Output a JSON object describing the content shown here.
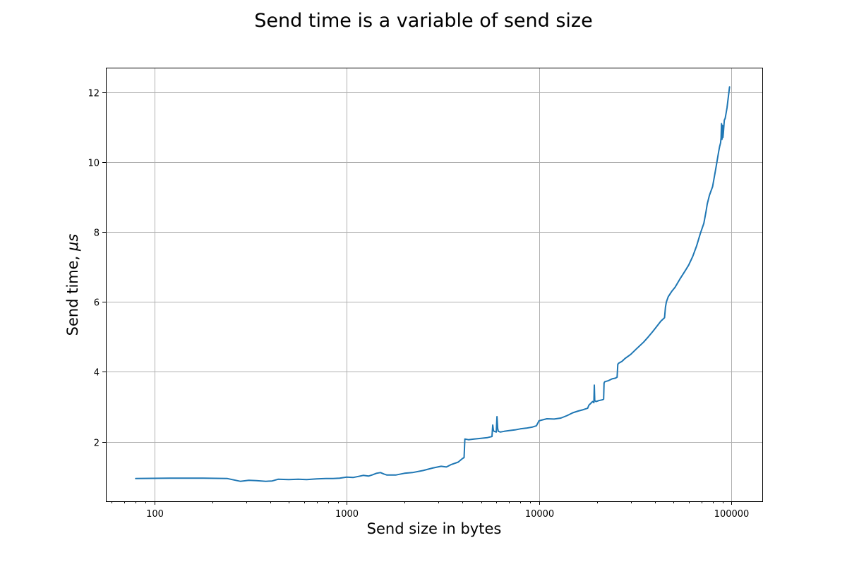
{
  "chart_data": {
    "type": "line",
    "title": "Send time is a variable of send size",
    "xlabel": "Send size in bytes",
    "ylabel_text": "Send time, ",
    "ylabel_unit": "μs",
    "x_scale": "log",
    "xlim": [
      56,
      145000
    ],
    "ylim": [
      0.3,
      12.7
    ],
    "x_ticks": [
      100,
      1000,
      10000,
      100000
    ],
    "x_tick_labels": [
      "100",
      "1000",
      "10000",
      "100000"
    ],
    "y_ticks": [
      2,
      4,
      6,
      8,
      10,
      12
    ],
    "y_tick_labels": [
      "2",
      "4",
      "6",
      "8",
      "10",
      "12"
    ],
    "grid": true,
    "series": [
      {
        "color": "#1f77b4",
        "x": [
          80,
          120,
          180,
          240,
          280,
          310,
          340,
          380,
          410,
          440,
          500,
          560,
          620,
          700,
          780,
          850,
          920,
          1000,
          1080,
          1150,
          1220,
          1300,
          1370,
          1430,
          1500,
          1560,
          1620,
          1800,
          2000,
          2200,
          2500,
          2800,
          3100,
          3300,
          3500,
          3800,
          4000,
          4080,
          4120,
          4300,
          4600,
          5000,
          5400,
          5700,
          5750,
          5800,
          5850,
          6000,
          6050,
          6100,
          6150,
          6300,
          6600,
          7000,
          7500,
          8000,
          8600,
          9200,
          9700,
          9900,
          10000,
          10500,
          11000,
          12000,
          13000,
          14000,
          15000,
          16000,
          17000,
          17900,
          18200,
          18600,
          19000,
          19300,
          19400,
          19500,
          19800,
          20500,
          21300,
          21700,
          21800,
          22000,
          23000,
          24000,
          25000,
          25500,
          25700,
          26000,
          27000,
          28000,
          30000,
          32000,
          35000,
          37000,
          39000,
          41000,
          43000,
          45000,
          45500,
          46000,
          47000,
          49000,
          51000,
          54000,
          57000,
          60000,
          63000,
          66000,
          69000,
          72000,
          74000,
          75000,
          77000,
          80000,
          83000,
          86000,
          87000,
          88000,
          88500,
          89000,
          89500,
          90000,
          90500,
          91000,
          92000,
          93000,
          94000,
          95000,
          96000,
          97000,
          98000
        ],
        "y": [
          0.95,
          0.96,
          0.96,
          0.95,
          0.87,
          0.9,
          0.89,
          0.87,
          0.88,
          0.93,
          0.92,
          0.93,
          0.92,
          0.94,
          0.95,
          0.95,
          0.96,
          0.99,
          0.98,
          1.01,
          1.04,
          1.02,
          1.06,
          1.1,
          1.12,
          1.08,
          1.05,
          1.05,
          1.1,
          1.12,
          1.18,
          1.25,
          1.3,
          1.28,
          1.35,
          1.42,
          1.52,
          1.55,
          2.08,
          2.06,
          2.08,
          2.1,
          2.12,
          2.15,
          2.48,
          2.32,
          2.3,
          2.28,
          2.72,
          2.38,
          2.3,
          2.28,
          2.3,
          2.32,
          2.34,
          2.37,
          2.39,
          2.42,
          2.46,
          2.55,
          2.6,
          2.63,
          2.66,
          2.65,
          2.68,
          2.75,
          2.83,
          2.88,
          2.92,
          2.96,
          3.05,
          3.1,
          3.15,
          3.12,
          3.62,
          3.18,
          3.15,
          3.18,
          3.2,
          3.22,
          3.68,
          3.72,
          3.75,
          3.8,
          3.82,
          3.85,
          4.22,
          4.25,
          4.3,
          4.38,
          4.5,
          4.65,
          4.85,
          5.0,
          5.15,
          5.3,
          5.45,
          5.55,
          5.85,
          6.0,
          6.15,
          6.3,
          6.42,
          6.65,
          6.85,
          7.05,
          7.3,
          7.6,
          7.95,
          8.25,
          8.6,
          8.8,
          9.05,
          9.3,
          9.8,
          10.3,
          10.45,
          10.55,
          10.7,
          11.1,
          10.65,
          11.05,
          10.7,
          10.85,
          11.2,
          11.25,
          11.4,
          11.55,
          11.75,
          11.95,
          12.15
        ]
      }
    ]
  }
}
